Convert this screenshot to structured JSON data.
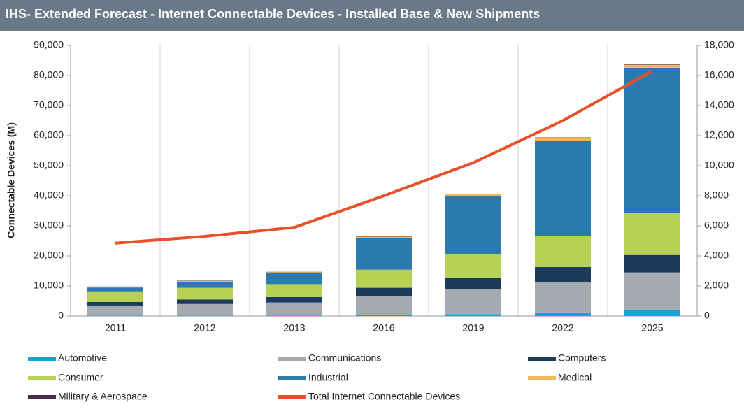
{
  "chart_data": {
    "type": "bar",
    "title": "IHS- Extended Forecast - Internet Connectable Devices - Installed Base & New Shipments",
    "y_label": "Connectable Devices (M)",
    "stacked": true,
    "categories": [
      "2011",
      "2012",
      "2013",
      "2016",
      "2019",
      "2022",
      "2025"
    ],
    "series": [
      {
        "name": "Automotive",
        "color": "#1aa0d8",
        "values": [
          100,
          100,
          200,
          300,
          600,
          1200,
          2000
        ]
      },
      {
        "name": "Communications",
        "color": "#a5aab0",
        "values": [
          3400,
          3900,
          4300,
          6300,
          8400,
          10100,
          12500
        ]
      },
      {
        "name": "Computers",
        "color": "#1b3a5c",
        "values": [
          1200,
          1500,
          1800,
          2800,
          3800,
          5000,
          5800
        ]
      },
      {
        "name": "Consumer",
        "color": "#b6d154",
        "values": [
          3500,
          3900,
          4300,
          6000,
          7900,
          10300,
          14000
        ]
      },
      {
        "name": "Industrial",
        "color": "#2a7aad",
        "values": [
          1300,
          2000,
          3600,
          10600,
          19200,
          31700,
          48300
        ]
      },
      {
        "name": "Medical",
        "color": "#f2b95b",
        "values": [
          200,
          300,
          400,
          400,
          600,
          900,
          1000
        ]
      },
      {
        "name": "Military & Aerospace",
        "color": "#4b2a4d",
        "values": [
          100,
          100,
          100,
          100,
          100,
          200,
          200
        ]
      },
      {
        "name": "Total Internet Connectable Devices",
        "color": "#e8502a",
        "type": "line",
        "axis": "y2",
        "values": [
          4850,
          5300,
          5900,
          8000,
          10200,
          13000,
          16300
        ]
      }
    ],
    "ylim": [
      0,
      90000
    ],
    "yticks": [
      0,
      {
        "value": 10000,
        "label": "10,000"
      },
      {
        "value": 20000,
        "label": "20,000"
      },
      {
        "value": 30000,
        "label": "30,000"
      },
      {
        "value": 40000,
        "label": "40,000"
      },
      {
        "value": 50000,
        "label": "50,000"
      },
      {
        "value": 60000,
        "label": "60,000"
      },
      {
        "value": 70000,
        "label": "70,000"
      },
      {
        "value": 80000,
        "label": "80,000"
      },
      {
        "value": 90000,
        "label": "90,000"
      }
    ],
    "y2lim": [
      0,
      18000
    ],
    "y2ticks": [
      0,
      {
        "value": 2000,
        "label": "2,000"
      },
      {
        "value": 4000,
        "label": "4,000"
      },
      {
        "value": 6000,
        "label": "6,000"
      },
      {
        "value": 8000,
        "label": "8,000"
      },
      {
        "value": 10000,
        "label": "10,000"
      },
      {
        "value": 12000,
        "label": "12,000"
      },
      {
        "value": 14000,
        "label": "14,000"
      },
      {
        "value": 16000,
        "label": "16,000"
      },
      {
        "value": 18000,
        "label": "18,000"
      }
    ],
    "legend": "bottom"
  }
}
